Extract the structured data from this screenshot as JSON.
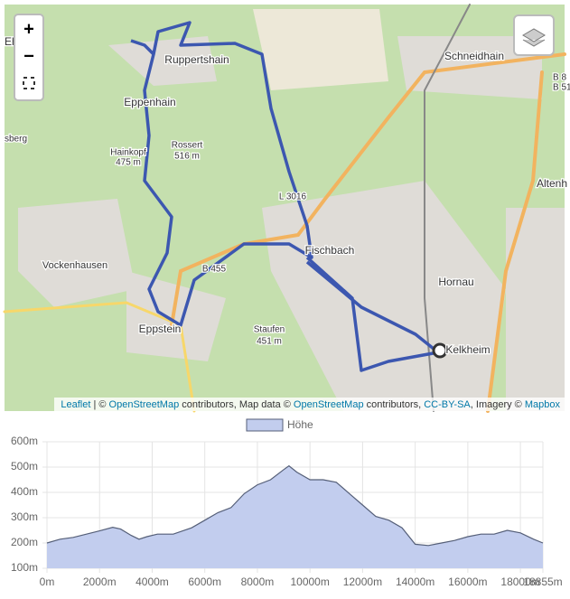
{
  "map": {
    "controls": {
      "zoom_in": "+",
      "zoom_out": "−"
    },
    "labels": [
      "Eh",
      "Ruppertshain",
      "Eppenhain",
      "Hainkopf",
      "475 m",
      "Rossert",
      "516 m",
      "L 3016",
      "Fischbach",
      "B 455",
      "Vockenhausen",
      "Eppstein",
      "Staufen",
      "451 m",
      "Hornau",
      "Kelkheim",
      "Schneidhain",
      "Altenh",
      "B 8",
      "B 51",
      "sberg"
    ],
    "attribution": [
      "Leaflet",
      " | © ",
      "OpenStreetMap",
      " contributors, Map data © ",
      "OpenStreetMap",
      " contributors, ",
      "CC-BY-SA",
      ", Imagery © ",
      "Mapbox"
    ]
  },
  "chart_data": {
    "type": "area",
    "x": [
      0,
      500,
      1000,
      1500,
      2000,
      2500,
      2800,
      3200,
      3500,
      3800,
      4200,
      4800,
      5500,
      6000,
      6500,
      7000,
      7500,
      8000,
      8500,
      9000,
      9200,
      9500,
      10000,
      10500,
      11000,
      11500,
      12000,
      12500,
      13000,
      13500,
      14000,
      14500,
      15000,
      15500,
      16000,
      16500,
      17000,
      17500,
      18000,
      18500,
      18855
    ],
    "series": [
      {
        "name": "Höhe",
        "color": "#c2cdee",
        "line_color": "#555f78",
        "values": [
          200,
          215,
          222,
          235,
          248,
          262,
          255,
          230,
          215,
          225,
          235,
          235,
          260,
          290,
          320,
          340,
          395,
          430,
          450,
          490,
          505,
          480,
          450,
          450,
          440,
          395,
          350,
          305,
          290,
          260,
          195,
          190,
          200,
          210,
          225,
          235,
          235,
          250,
          240,
          215,
          200
        ]
      }
    ],
    "xlim": [
      0,
      18855
    ],
    "ylim": [
      100,
      600
    ],
    "xticks": [
      {
        "value": 0,
        "label": "0m"
      },
      {
        "value": 2000,
        "label": "2000m"
      },
      {
        "value": 4000,
        "label": "4000m"
      },
      {
        "value": 6000,
        "label": "6000m"
      },
      {
        "value": 8000,
        "label": "8000m"
      },
      {
        "value": 10000,
        "label": "10000m"
      },
      {
        "value": 12000,
        "label": "12000m"
      },
      {
        "value": 14000,
        "label": "14000m"
      },
      {
        "value": 16000,
        "label": "16000m"
      },
      {
        "value": 18000,
        "label": "18000m"
      },
      {
        "value": 18855,
        "label": "18855m"
      }
    ],
    "yticks": [
      {
        "value": 100,
        "label": "100m"
      },
      {
        "value": 200,
        "label": "200m"
      },
      {
        "value": 300,
        "label": "300m"
      },
      {
        "value": 400,
        "label": "400m"
      },
      {
        "value": 500,
        "label": "500m"
      },
      {
        "value": 600,
        "label": "600m"
      }
    ],
    "grid": true
  }
}
